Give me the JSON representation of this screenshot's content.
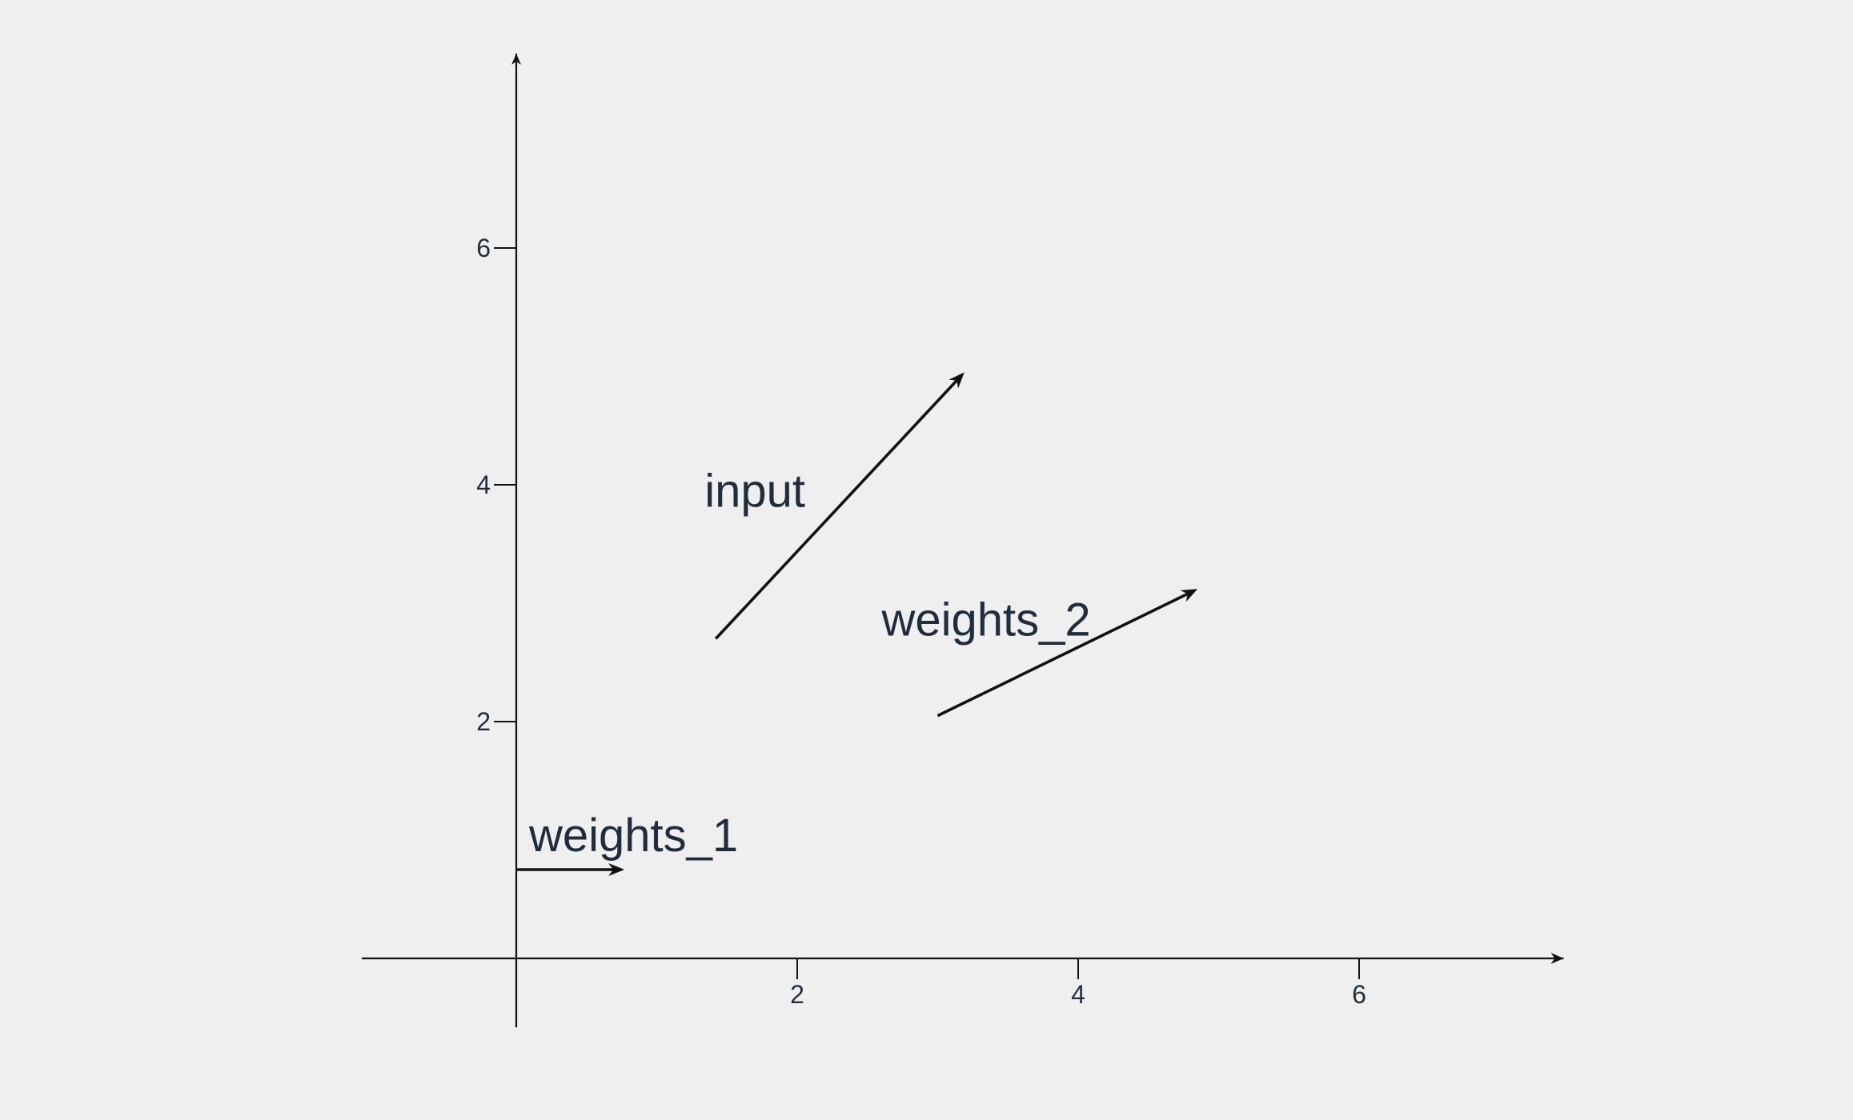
{
  "chart_data": {
    "type": "vector",
    "xlim": [
      -1.1,
      7.0
    ],
    "ylim": [
      -0.65,
      7.0
    ],
    "x_ticks": [
      2,
      4,
      6
    ],
    "y_ticks": [
      2,
      4,
      6
    ],
    "x_tick_labels": [
      "2",
      "4",
      "6"
    ],
    "y_tick_labels": [
      "2",
      "4",
      "6"
    ],
    "grid": false,
    "vectors": [
      {
        "name": "input",
        "x0": 1.42,
        "y0": 2.7,
        "x1": 3.19,
        "y1": 4.95
      },
      {
        "name": "weights_2",
        "x0": 3.0,
        "y0": 2.05,
        "x1": 4.85,
        "y1": 3.12
      },
      {
        "name": "weights_1",
        "x0": 0.0,
        "y0": 0.75,
        "x1": 0.77,
        "y1": 0.75
      }
    ]
  }
}
